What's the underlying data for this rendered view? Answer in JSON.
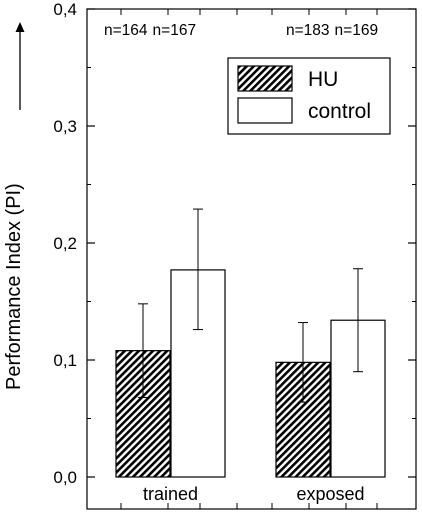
{
  "chart_data": {
    "type": "bar",
    "ylabel": "Performance Index (PI)",
    "categories": [
      "trained",
      "exposed"
    ],
    "ylim": [
      0.0,
      0.4
    ],
    "yticks": [
      "0,0",
      "0,1",
      "0,2",
      "0,3",
      "0,4"
    ],
    "series": [
      {
        "name": "HU",
        "values": [
          0.108,
          0.098
        ],
        "error_low": [
          0.068,
          0.064
        ],
        "error_high": [
          0.148,
          0.132
        ],
        "pattern": "diagonal-hatch"
      },
      {
        "name": "control",
        "values": [
          0.177,
          0.134
        ],
        "error_low": [
          0.126,
          0.09
        ],
        "error_high": [
          0.229,
          0.178
        ],
        "pattern": "white"
      }
    ],
    "sample_sizes": [
      [
        "n=164",
        "n=167"
      ],
      [
        "n=183",
        "n=169"
      ]
    ],
    "legend_position": "top-right",
    "grid": false
  }
}
